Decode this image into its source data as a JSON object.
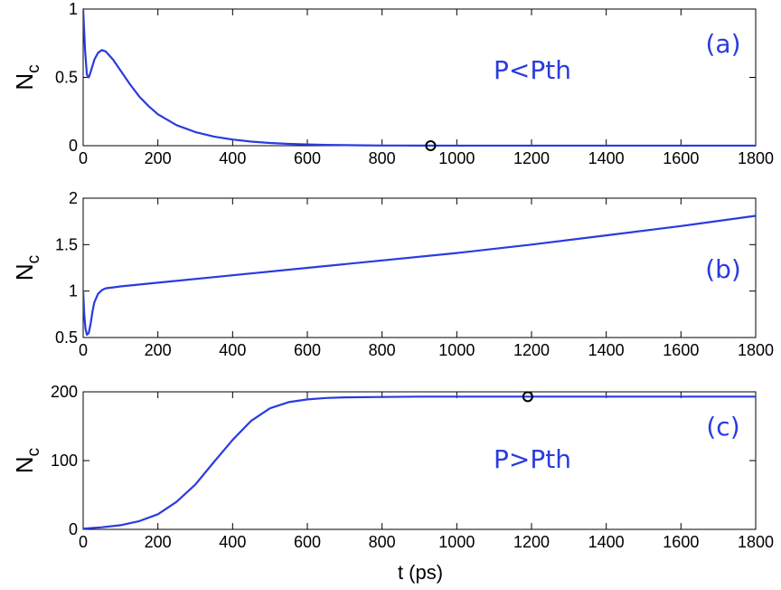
{
  "colors": {
    "series": "#2a3be0",
    "axes": "#000000",
    "marker": "#000000"
  },
  "chart_data": [
    {
      "type": "line",
      "panel_label": "(a)",
      "annotation": "P<Pth",
      "ylabel": "N",
      "ylabel_sub": "c",
      "xlabel": "",
      "xlim": [
        0,
        1800
      ],
      "ylim": [
        0,
        1
      ],
      "xticks": [
        0,
        200,
        400,
        600,
        800,
        1000,
        1200,
        1400,
        1600,
        1800
      ],
      "yticks": [
        0,
        0.5,
        1
      ],
      "ytick_labels": [
        "0",
        "0.5",
        "1"
      ],
      "series": [
        {
          "x": [
            0,
            5,
            10,
            15,
            20,
            30,
            40,
            50,
            60,
            80,
            100,
            125,
            150,
            175,
            200,
            250,
            300,
            350,
            400,
            450,
            500,
            550,
            600,
            650,
            700,
            750,
            800,
            850,
            900,
            1000,
            1200,
            1400,
            1600,
            1800
          ],
          "values": [
            1.0,
            0.7,
            0.52,
            0.5,
            0.54,
            0.63,
            0.68,
            0.7,
            0.69,
            0.63,
            0.55,
            0.45,
            0.36,
            0.29,
            0.23,
            0.15,
            0.1,
            0.067,
            0.045,
            0.03,
            0.02,
            0.013,
            0.009,
            0.006,
            0.004,
            0.0025,
            0.0015,
            0.001,
            0.0005,
            0.0002,
            0,
            0,
            0,
            0
          ]
        }
      ],
      "markers": [
        {
          "x": 930,
          "y": 0
        }
      ]
    },
    {
      "type": "line",
      "panel_label": "(b)",
      "ylabel": "N",
      "ylabel_sub": "c",
      "xlabel": "",
      "xlim": [
        0,
        1800
      ],
      "ylim": [
        0.5,
        2
      ],
      "xticks": [
        0,
        200,
        400,
        600,
        800,
        1000,
        1200,
        1400,
        1600,
        1800
      ],
      "yticks": [
        0.5,
        1,
        1.5,
        2
      ],
      "ytick_labels": [
        "0.5",
        "1",
        "1.5",
        "2"
      ],
      "series": [
        {
          "x": [
            0,
            3,
            6,
            10,
            15,
            20,
            25,
            30,
            40,
            50,
            60,
            70,
            80,
            100,
            200,
            400,
            600,
            800,
            1000,
            1200,
            1400,
            1600,
            1800
          ],
          "values": [
            1.0,
            0.75,
            0.6,
            0.53,
            0.55,
            0.65,
            0.78,
            0.88,
            0.97,
            1.01,
            1.03,
            1.035,
            1.04,
            1.05,
            1.09,
            1.17,
            1.25,
            1.33,
            1.41,
            1.5,
            1.6,
            1.7,
            1.81
          ]
        }
      ],
      "markers": []
    },
    {
      "type": "line",
      "panel_label": "(c)",
      "annotation": "P>Pth",
      "ylabel": "N",
      "ylabel_sub": "c",
      "xlabel": "t (ps)",
      "xlim": [
        0,
        1800
      ],
      "ylim": [
        0,
        200
      ],
      "xticks": [
        0,
        200,
        400,
        600,
        800,
        1000,
        1200,
        1400,
        1600,
        1800
      ],
      "yticks": [
        0,
        100,
        200
      ],
      "ytick_labels": [
        "0",
        "100",
        "200"
      ],
      "series": [
        {
          "x": [
            0,
            50,
            100,
            150,
            200,
            250,
            300,
            350,
            400,
            450,
            500,
            550,
            600,
            650,
            700,
            800,
            900,
            1000,
            1200,
            1400,
            1600,
            1800
          ],
          "values": [
            1,
            3,
            6,
            12,
            22,
            40,
            65,
            98,
            130,
            158,
            176,
            185,
            189,
            191,
            192,
            192.5,
            193,
            193,
            193,
            193,
            193,
            193
          ]
        }
      ],
      "markers": [
        {
          "x": 1190,
          "y": 193
        }
      ]
    }
  ]
}
